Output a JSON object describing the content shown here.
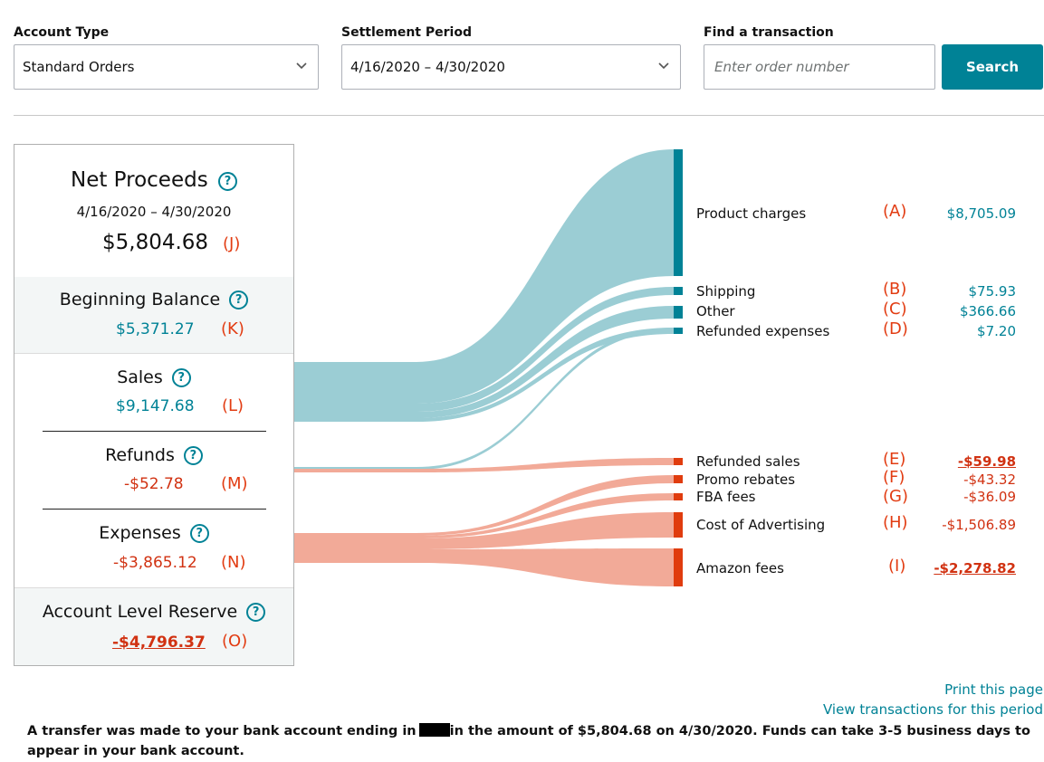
{
  "filters": {
    "account_type": {
      "label": "Account Type",
      "value": "Standard Orders"
    },
    "settlement_period": {
      "label": "Settlement Period",
      "value": "4/16/2020 – 4/30/2020"
    },
    "find": {
      "label": "Find a transaction",
      "placeholder": "Enter order number",
      "button": "Search"
    }
  },
  "summary": {
    "net_proceeds": {
      "title": "Net Proceeds",
      "period": "4/16/2020 – 4/30/2020",
      "amount": "$5,804.68",
      "tag": "(J)"
    },
    "beginning_balance": {
      "title": "Beginning Balance",
      "amount": "$5,371.27",
      "tag": "(K)"
    },
    "sales": {
      "title": "Sales",
      "amount": "$9,147.68",
      "tag": "(L)"
    },
    "refunds": {
      "title": "Refunds",
      "amount": "-$52.78",
      "tag": "(M)"
    },
    "expenses": {
      "title": "Expenses",
      "amount": "-$3,865.12",
      "tag": "(N)"
    },
    "reserve": {
      "title": "Account Level Reserve",
      "amount": "-$4,796.37",
      "tag": "(O)"
    },
    "help_icon": "?"
  },
  "breakdown": [
    {
      "label": "Product charges",
      "tag": "(A)",
      "amount": "$8,705.09",
      "group": "sales"
    },
    {
      "label": "Shipping",
      "tag": "(B)",
      "amount": "$75.93",
      "group": "sales"
    },
    {
      "label": "Other",
      "tag": "(C)",
      "amount": "$366.66",
      "group": "sales"
    },
    {
      "label": "Refunded expenses",
      "tag": "(D)",
      "amount": "$7.20",
      "group": "refunds"
    },
    {
      "label": "Refunded sales",
      "tag": "(E)",
      "amount": "-$59.98",
      "group": "refunds"
    },
    {
      "label": "Promo rebates",
      "tag": "(F)",
      "amount": "-$43.32",
      "group": "expenses"
    },
    {
      "label": "FBA fees",
      "tag": "(G)",
      "amount": "-$36.09",
      "group": "expenses"
    },
    {
      "label": "Cost of Advertising",
      "tag": "(H)",
      "amount": "-$1,506.89",
      "group": "expenses"
    },
    {
      "label": "Amazon fees",
      "tag": "(I)",
      "amount": "-$2,278.82",
      "group": "expenses"
    }
  ],
  "colors": {
    "teal": "#008296",
    "teal_flow": "#9bcdd4",
    "red": "#d13212",
    "red_bar": "#e03c0e",
    "red_flow": "#f2aa98"
  },
  "links": {
    "print": "Print this page",
    "view": "View transactions for this period"
  },
  "notice": {
    "before": "A transfer was made to your bank account ending in",
    "after": "in the amount of $5,804.68 on 4/30/2020. Funds can take 3-5 business days to appear in your bank account."
  }
}
